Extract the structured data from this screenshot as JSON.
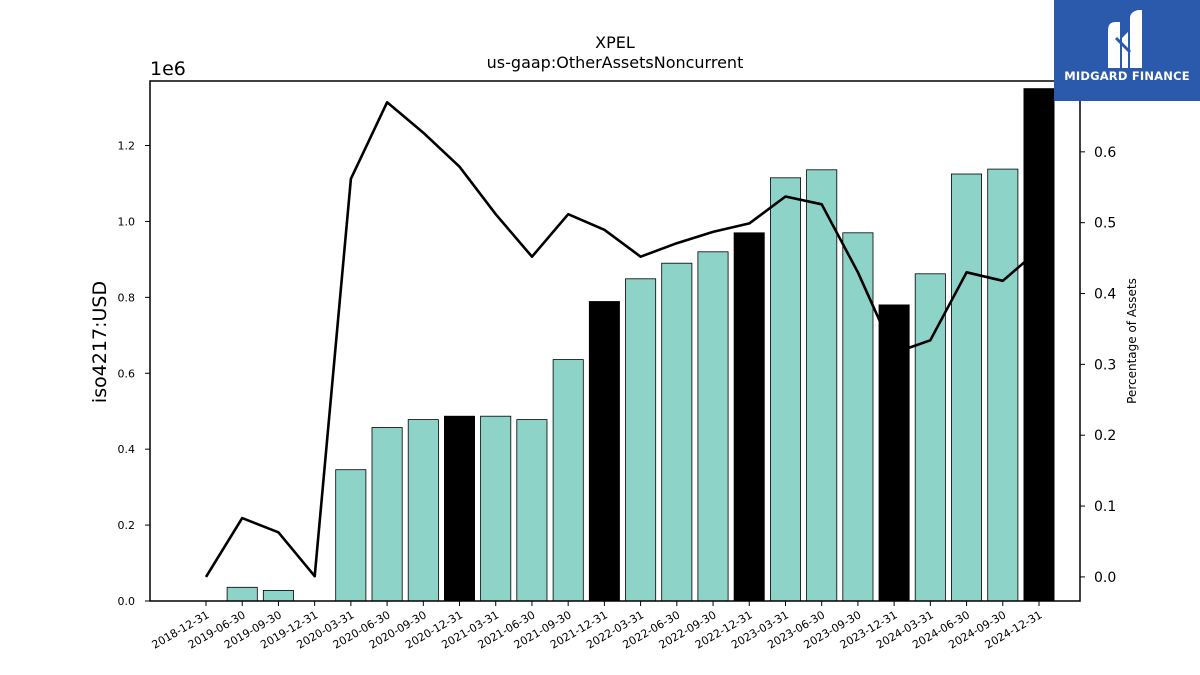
{
  "chart_data": {
    "type": "bar",
    "title": "XPEL",
    "subtitle": "us-gaap:OtherAssetsNoncurrent",
    "ylabel": "iso4217:USD",
    "y2label": "Percentage of Assets",
    "y_scale_label": "1e6",
    "ylim": [
      0,
      1370000
    ],
    "y2lim": [
      -0.034,
      0.7
    ],
    "yticks": [
      0.0,
      0.2,
      0.4,
      0.6,
      0.8,
      1.0,
      1.2
    ],
    "y2ticks": [
      0.0,
      0.1,
      0.2,
      0.3,
      0.4,
      0.5,
      0.6
    ],
    "categories": [
      "2018-12-31",
      "2019-06-30",
      "2019-09-30",
      "2019-12-31",
      "2020-03-31",
      "2020-06-30",
      "2020-09-30",
      "2020-12-31",
      "2021-03-31",
      "2021-06-30",
      "2021-09-30",
      "2021-12-31",
      "2022-03-31",
      "2022-06-30",
      "2022-09-30",
      "2022-12-31",
      "2023-03-31",
      "2023-06-30",
      "2023-09-30",
      "2023-12-31",
      "2024-03-31",
      "2024-06-30",
      "2024-09-30",
      "2024-12-31"
    ],
    "series": [
      {
        "type": "bar",
        "values": [
          0,
          36000,
          28000,
          0,
          346000,
          457000,
          478000,
          487000,
          487000,
          478000,
          636000,
          789000,
          849000,
          890000,
          920000,
          970000,
          1115000,
          1136000,
          970000,
          780000,
          862000,
          1125000,
          1138000,
          1350000
        ],
        "colors": [
          "#8dd3c7",
          "#8dd3c7",
          "#8dd3c7",
          "#8dd3c7",
          "#8dd3c7",
          "#8dd3c7",
          "#8dd3c7",
          "#000000",
          "#8dd3c7",
          "#8dd3c7",
          "#8dd3c7",
          "#000000",
          "#8dd3c7",
          "#8dd3c7",
          "#8dd3c7",
          "#000000",
          "#8dd3c7",
          "#8dd3c7",
          "#8dd3c7",
          "#000000",
          "#8dd3c7",
          "#8dd3c7",
          "#8dd3c7",
          "#000000"
        ]
      },
      {
        "type": "line",
        "axis": "right",
        "values": [
          0.0,
          0.083,
          0.063,
          0.001,
          0.562,
          0.67,
          0.627,
          0.579,
          0.512,
          0.452,
          0.512,
          0.49,
          0.452,
          0.471,
          0.487,
          0.499,
          0.537,
          0.526,
          0.43,
          0.316,
          0.334,
          0.43,
          0.418,
          0.462
        ],
        "color": "#000000"
      }
    ],
    "grid": false,
    "legend": "none"
  },
  "logo": {
    "text": "MIDGARD FINANCE",
    "color": "#2b5aad"
  }
}
